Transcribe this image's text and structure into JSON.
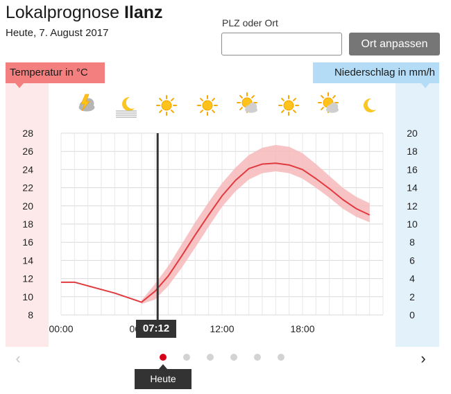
{
  "header": {
    "title_prefix": "Lokalprognose",
    "place": "Ilanz",
    "date": "Heute, 7. August 2017"
  },
  "search": {
    "label": "PLZ oder Ort",
    "value": "",
    "placeholder": "",
    "button_label": "Ort anpassen"
  },
  "weather_icons": [
    "thunder-cloud",
    "moon-fog",
    "sun",
    "sun",
    "sun-cloud",
    "sun",
    "sun-cloud",
    "moon"
  ],
  "colors": {
    "temperature_line": "#e03a3e",
    "temperature_band": "#f6b9bb",
    "temperature_accent": "#f3807e",
    "precipitation_accent": "#b4dcf6",
    "current_time_line": "#333333",
    "active_dot": "#d7001a"
  },
  "chart_data": {
    "type": "line",
    "left_axis": {
      "label": "Temperatur in °C",
      "ylim": [
        8,
        28
      ],
      "ticks": [
        "28",
        "26",
        "24",
        "22",
        "20",
        "18",
        "16",
        "14",
        "12",
        "10",
        "8"
      ]
    },
    "right_axis": {
      "label": "Niederschlag in mm/h",
      "ylim": [
        0,
        20
      ],
      "ticks": [
        "20",
        "18",
        "16",
        "14",
        "12",
        "10",
        "8",
        "6",
        "4",
        "2",
        "0"
      ]
    },
    "x_axis": {
      "xlim": [
        0,
        24
      ],
      "tick_labels": [
        "00:00",
        "06:00",
        "12:00",
        "18:00"
      ],
      "tick_hours": [
        0,
        6,
        12,
        18
      ]
    },
    "grid": true,
    "current_time": {
      "hour": 7.2,
      "label": "07:12"
    },
    "series": [
      {
        "x": [
          0,
          1,
          2,
          3,
          4,
          5,
          6,
          7,
          8,
          9,
          10,
          11,
          12,
          13,
          14,
          15,
          16,
          17,
          18,
          19,
          20,
          21,
          22,
          23
        ],
        "values": [
          11.6,
          11.6,
          11.2,
          10.8,
          10.4,
          9.9,
          9.4,
          10.6,
          12.3,
          14.5,
          16.8,
          19.0,
          21.1,
          22.8,
          24.1,
          24.6,
          24.7,
          24.5,
          24.0,
          23.0,
          21.9,
          20.7,
          19.7,
          19.0
        ]
      }
    ],
    "band": {
      "x": [
        6,
        7,
        8,
        9,
        10,
        11,
        12,
        13,
        14,
        15,
        16,
        17,
        18,
        19,
        20,
        21,
        22,
        23
      ],
      "low": [
        9.2,
        9.7,
        11.2,
        13.2,
        15.4,
        17.7,
        19.9,
        21.6,
        22.9,
        23.6,
        23.8,
        23.6,
        23.0,
        22.0,
        20.9,
        19.7,
        18.8,
        18.2
      ],
      "high": [
        9.6,
        11.4,
        13.4,
        15.8,
        18.2,
        20.4,
        22.5,
        24.2,
        25.6,
        26.4,
        26.7,
        26.5,
        25.8,
        24.6,
        23.3,
        22.0,
        21.0,
        20.3
      ]
    }
  },
  "navigation": {
    "prev_symbol": "‹",
    "next_symbol": "›",
    "dot_count": 6,
    "active_dot": 0,
    "active_label": "Heute"
  }
}
